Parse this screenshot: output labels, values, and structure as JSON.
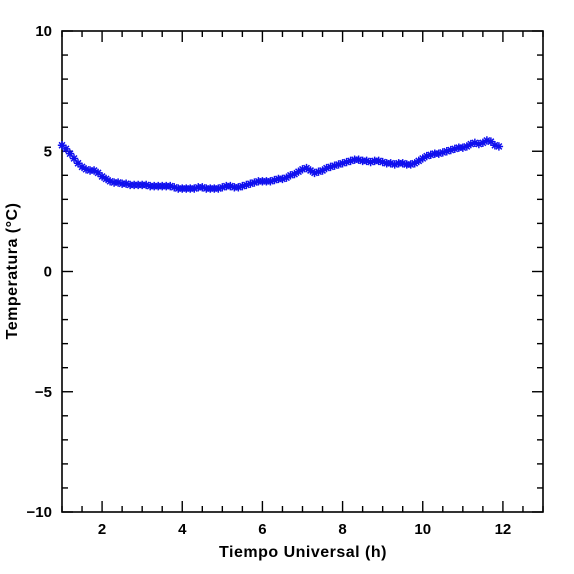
{
  "chart_data": {
    "type": "scatter",
    "title": "",
    "xlabel": "Tiempo Universal (h)",
    "ylabel": "Temperatura (°C)",
    "xlim": [
      1,
      13
    ],
    "ylim": [
      -10,
      10
    ],
    "xticks": [
      2,
      4,
      6,
      8,
      10,
      12
    ],
    "xtick_labels": [
      "2",
      "4",
      "6",
      "8",
      "10",
      "12"
    ],
    "yticks": [
      -10,
      -5,
      0,
      5,
      10
    ],
    "ytick_labels": [
      "−10",
      "−5",
      "0",
      "5",
      "10"
    ],
    "grid": false,
    "marker": "asterisk",
    "color": "#1010ee",
    "series": [
      {
        "x": [
          1.0,
          1.1,
          1.2,
          1.3,
          1.4,
          1.5,
          1.6,
          1.7,
          1.8,
          1.9,
          2.0,
          2.1,
          2.2,
          2.3,
          2.4,
          2.5,
          2.6,
          2.7,
          2.8,
          2.9,
          3.0,
          3.1,
          3.2,
          3.3,
          3.4,
          3.5,
          3.6,
          3.7,
          3.8,
          3.9,
          4.0,
          4.1,
          4.2,
          4.3,
          4.4,
          4.5,
          4.6,
          4.7,
          4.8,
          4.9,
          5.0,
          5.1,
          5.2,
          5.3,
          5.4,
          5.5,
          5.6,
          5.7,
          5.8,
          5.9,
          6.0,
          6.1,
          6.2,
          6.3,
          6.4,
          6.5,
          6.6,
          6.7,
          6.8,
          6.9,
          7.0,
          7.1,
          7.2,
          7.3,
          7.4,
          7.5,
          7.6,
          7.7,
          7.8,
          7.9,
          8.0,
          8.1,
          8.2,
          8.3,
          8.4,
          8.5,
          8.6,
          8.7,
          8.8,
          8.9,
          9.0,
          9.1,
          9.2,
          9.3,
          9.4,
          9.5,
          9.6,
          9.7,
          9.8,
          9.9,
          10.0,
          10.1,
          10.2,
          10.3,
          10.4,
          10.5,
          10.6,
          10.7,
          10.8,
          10.9,
          11.0,
          11.1,
          11.2,
          11.3,
          11.4,
          11.5,
          11.6,
          11.7,
          11.8,
          11.9
        ],
        "y": [
          5.25,
          5.1,
          4.9,
          4.7,
          4.5,
          4.35,
          4.25,
          4.2,
          4.2,
          4.1,
          3.95,
          3.85,
          3.75,
          3.7,
          3.7,
          3.65,
          3.65,
          3.6,
          3.6,
          3.6,
          3.6,
          3.6,
          3.55,
          3.55,
          3.55,
          3.55,
          3.55,
          3.55,
          3.5,
          3.45,
          3.45,
          3.45,
          3.45,
          3.45,
          3.5,
          3.5,
          3.45,
          3.45,
          3.45,
          3.45,
          3.5,
          3.55,
          3.55,
          3.5,
          3.5,
          3.55,
          3.6,
          3.65,
          3.7,
          3.75,
          3.75,
          3.75,
          3.75,
          3.8,
          3.85,
          3.85,
          3.9,
          4.0,
          4.05,
          4.15,
          4.25,
          4.3,
          4.2,
          4.1,
          4.15,
          4.2,
          4.3,
          4.35,
          4.4,
          4.45,
          4.5,
          4.55,
          4.6,
          4.65,
          4.65,
          4.6,
          4.6,
          4.55,
          4.6,
          4.6,
          4.55,
          4.5,
          4.5,
          4.45,
          4.5,
          4.5,
          4.45,
          4.45,
          4.5,
          4.6,
          4.7,
          4.8,
          4.85,
          4.9,
          4.9,
          4.95,
          5.0,
          5.05,
          5.1,
          5.15,
          5.15,
          5.2,
          5.3,
          5.35,
          5.3,
          5.35,
          5.45,
          5.4,
          5.25,
          5.2
        ]
      }
    ]
  }
}
